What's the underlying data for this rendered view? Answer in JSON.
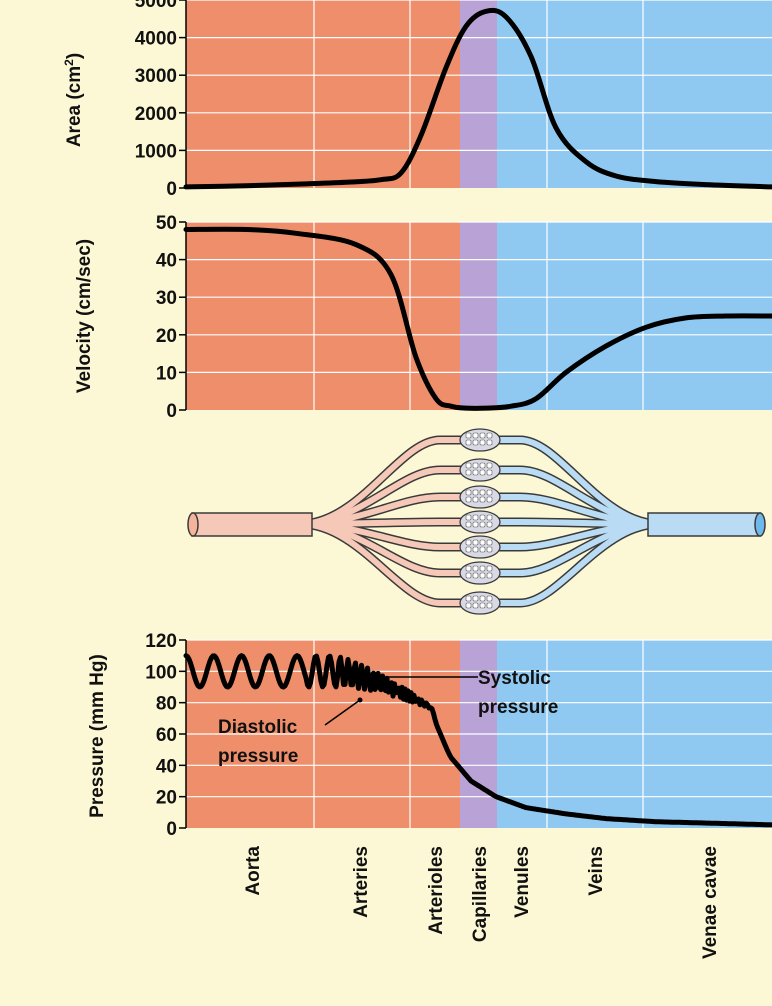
{
  "colors": {
    "background": "#fcf7d4",
    "arterial": "#ef8e6a",
    "capillary": "#b9a3d6",
    "venous": "#8fc8f1",
    "curve": "#000000",
    "gridline": "#ffffff",
    "vessel_arterial": "#f6c8b8",
    "vessel_venous": "#b9dcf4",
    "vessel_outline": "#3a3a3a"
  },
  "segments": [
    "Aorta",
    "Arteries",
    "Arterioles",
    "Capillaries",
    "Venules",
    "Veins",
    "Venae cavae"
  ],
  "chart_data": [
    {
      "type": "line",
      "title": "",
      "ylabel": "Area (cm²)",
      "xlabel": "",
      "ylim": [
        0,
        5000
      ],
      "yticks": [
        "5000",
        "4000",
        "3000",
        "2000",
        "1000",
        "0"
      ],
      "x": [
        0,
        60,
        120,
        165,
        195,
        215,
        235,
        260,
        280,
        300,
        320,
        345,
        370,
        400,
        430,
        470,
        520,
        586
      ],
      "values": [
        30,
        60,
        110,
        160,
        220,
        400,
        1400,
        3200,
        4300,
        4700,
        4550,
        3500,
        1600,
        700,
        320,
        170,
        90,
        30
      ]
    },
    {
      "type": "line",
      "title": "",
      "ylabel": "Velocity (cm/sec)",
      "xlabel": "",
      "ylim": [
        0,
        50
      ],
      "yticks": [
        "50",
        "40",
        "30",
        "20",
        "10",
        "0"
      ],
      "x": [
        0,
        60,
        110,
        170,
        205,
        230,
        250,
        265,
        280,
        300,
        325,
        350,
        380,
        420,
        460,
        500,
        540,
        586
      ],
      "values": [
        48,
        48,
        47,
        44,
        36,
        14,
        3,
        1,
        0.5,
        0.5,
        1,
        3,
        10,
        17,
        22,
        24.5,
        25,
        25
      ]
    },
    {
      "type": "line",
      "title": "",
      "ylabel": "Pressure (mm Hg)",
      "xlabel": "",
      "ylim": [
        0,
        120
      ],
      "yticks": [
        "120",
        "100",
        "80",
        "60",
        "40",
        "20",
        "0"
      ],
      "systolic_value": 110,
      "diastolic_value": 90,
      "annotations": [
        {
          "label": "Systolic pressure",
          "line1": "Systolic",
          "line2": "pressure"
        },
        {
          "label": "Diastolic pressure",
          "line1": "Diastolic",
          "line2": "pressure"
        }
      ],
      "x": [
        0,
        120,
        170,
        200,
        225,
        245,
        265,
        285,
        310,
        340,
        380,
        420,
        470,
        530,
        586
      ],
      "values": [
        100,
        100,
        95,
        85,
        75,
        62,
        45,
        30,
        20,
        13,
        9,
        6,
        4,
        3,
        2
      ]
    }
  ]
}
